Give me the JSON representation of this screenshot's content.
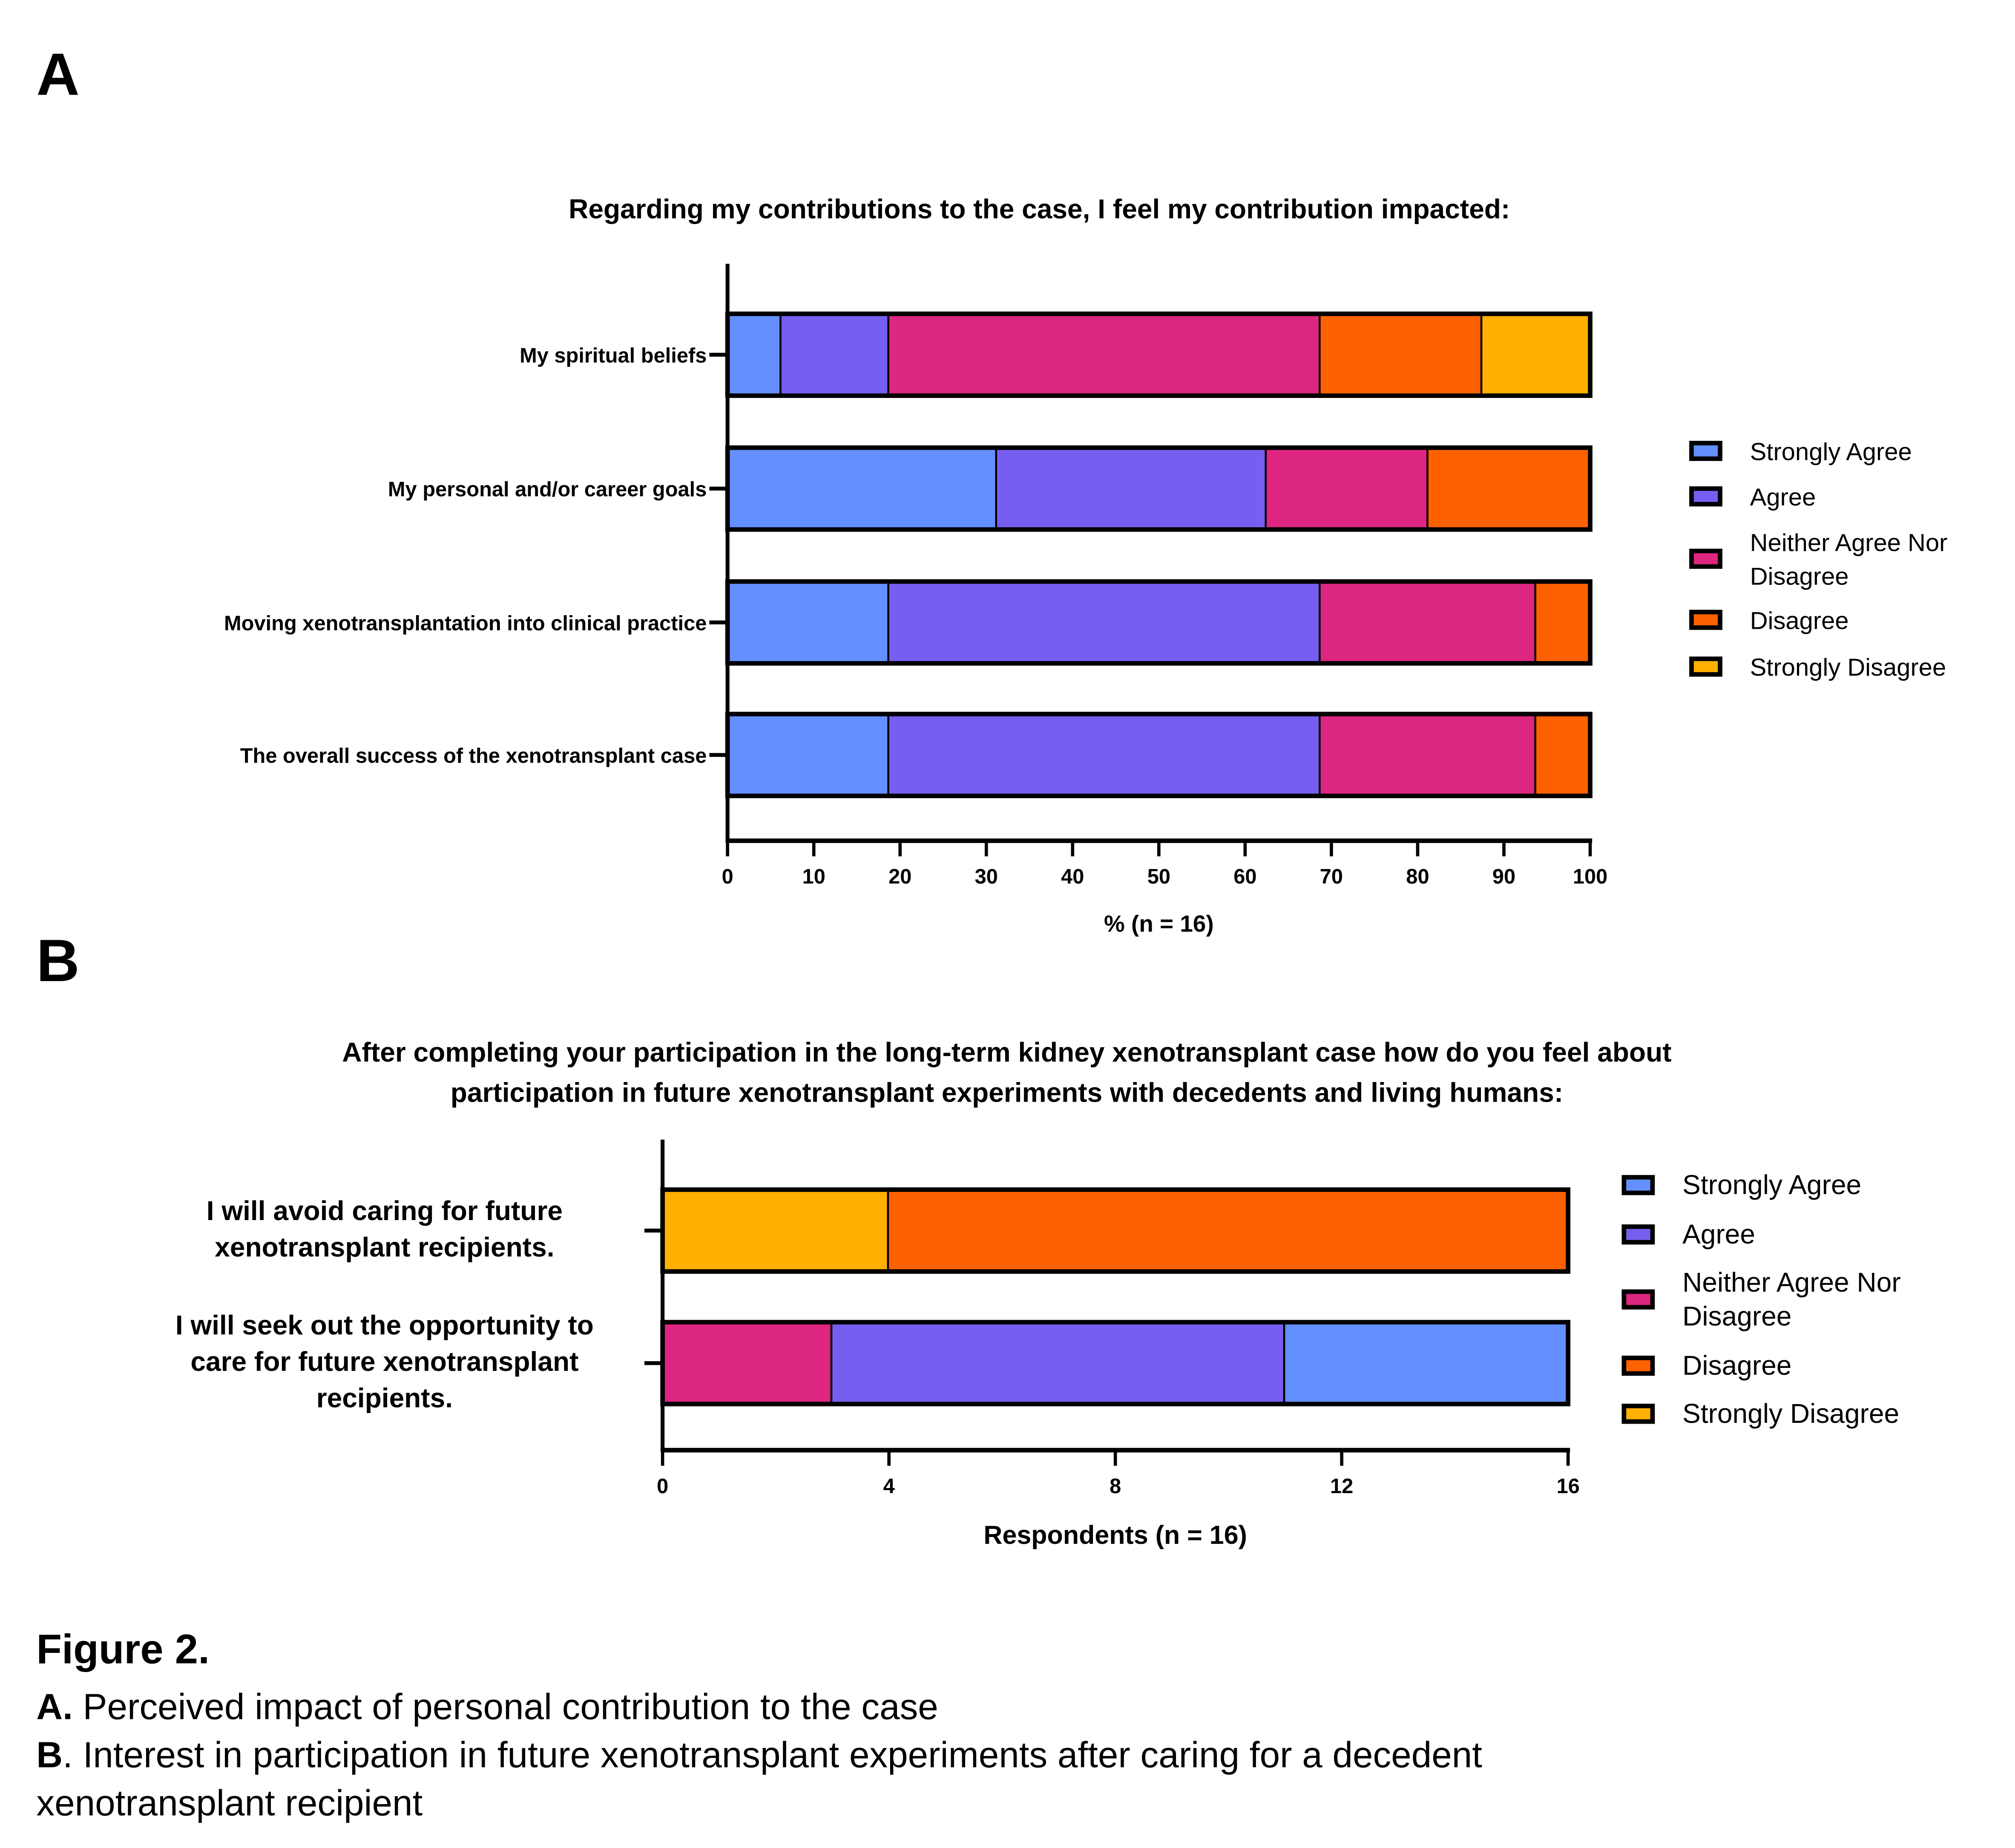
{
  "figure": {
    "panel_a_letter": "A",
    "panel_b_letter": "B",
    "caption": {
      "title": "Figure 2.",
      "a_prefix": "A.",
      "a_text": " Perceived impact of personal contribution to the case",
      "b_prefix": "B",
      "b_text_line1": ". Interest in participation in future xenotransplant experiments after caring for a decedent",
      "b_text_line2": "xenotransplant recipient"
    }
  },
  "legend_colors": {
    "Strongly Agree": "#648FFF",
    "Agree": "#785EF0",
    "Neither Agree Nor Disagree": "#DC267F",
    "Disagree": "#FE6100",
    "Strongly Disagree": "#FFB000"
  },
  "chart_data": [
    {
      "type": "bar",
      "orientation": "horizontal",
      "stacked": true,
      "title": "Regarding my contributions to the case, I feel my contribution impacted:",
      "xlabel": "% (n = 16)",
      "ylabel": "",
      "xlim": [
        0,
        100
      ],
      "xticks": [
        0,
        10,
        20,
        30,
        40,
        50,
        60,
        70,
        80,
        90,
        100
      ],
      "grid": false,
      "legend_position": "right",
      "categories": [
        "My spiritual beliefs",
        "My personal and/or career goals",
        "Moving xenotransplantation into clinical practice",
        "The overall success of the xenotransplant case"
      ],
      "series": [
        {
          "name": "Strongly Agree",
          "legend_lines": [
            "Strongly Agree"
          ],
          "color": "#648FFF",
          "values": [
            6.25,
            31.25,
            18.75,
            18.75
          ]
        },
        {
          "name": "Agree",
          "legend_lines": [
            "Agree"
          ],
          "color": "#785EF0",
          "values": [
            12.5,
            31.25,
            50,
            50
          ]
        },
        {
          "name": "Neither Agree Nor Disagree",
          "legend_lines": [
            "Neither Agree Nor",
            "Disagree"
          ],
          "color": "#DC267F",
          "values": [
            50,
            18.75,
            25,
            25
          ]
        },
        {
          "name": "Disagree",
          "legend_lines": [
            "Disagree"
          ],
          "color": "#FE6100",
          "values": [
            18.75,
            18.75,
            6.25,
            6.25
          ]
        },
        {
          "name": "Strongly Disagree",
          "legend_lines": [
            "Strongly Disagree"
          ],
          "color": "#FFB000",
          "values": [
            12.5,
            0,
            0,
            0
          ]
        }
      ]
    },
    {
      "type": "bar",
      "orientation": "horizontal",
      "stacked": true,
      "title_lines": [
        "After completing your participation in the long-term kidney xenotransplant case how do you feel about",
        "participation in future xenotransplant experiments with decedents and living humans:"
      ],
      "xlabel": "Respondents (n = 16)",
      "ylabel": "",
      "xlim": [
        0,
        16
      ],
      "xticks": [
        0,
        4,
        8,
        12,
        16
      ],
      "grid": false,
      "legend_position": "right",
      "categories": [
        [
          "I will avoid caring for future",
          "xenotransplant recipients."
        ],
        [
          "I will seek out the opportunity to",
          "care for future xenotransplant",
          "recipients."
        ]
      ],
      "stack_order": [
        "Strongly Disagree",
        "Disagree",
        "Neither Agree Nor Disagree",
        "Agree",
        "Strongly Agree"
      ],
      "series": [
        {
          "name": "Strongly Agree",
          "legend_lines": [
            "Strongly Agree"
          ],
          "color": "#648FFF",
          "values": [
            0,
            5
          ]
        },
        {
          "name": "Agree",
          "legend_lines": [
            "Agree"
          ],
          "color": "#785EF0",
          "values": [
            0,
            8
          ]
        },
        {
          "name": "Neither Agree Nor Disagree",
          "legend_lines": [
            "Neither Agree Nor",
            "Disagree"
          ],
          "color": "#DC267F",
          "values": [
            0,
            3
          ]
        },
        {
          "name": "Disagree",
          "legend_lines": [
            "Disagree"
          ],
          "color": "#FE6100",
          "values": [
            12,
            0
          ]
        },
        {
          "name": "Strongly Disagree",
          "legend_lines": [
            "Strongly Disagree"
          ],
          "color": "#FFB000",
          "values": [
            4,
            0
          ]
        }
      ]
    }
  ]
}
